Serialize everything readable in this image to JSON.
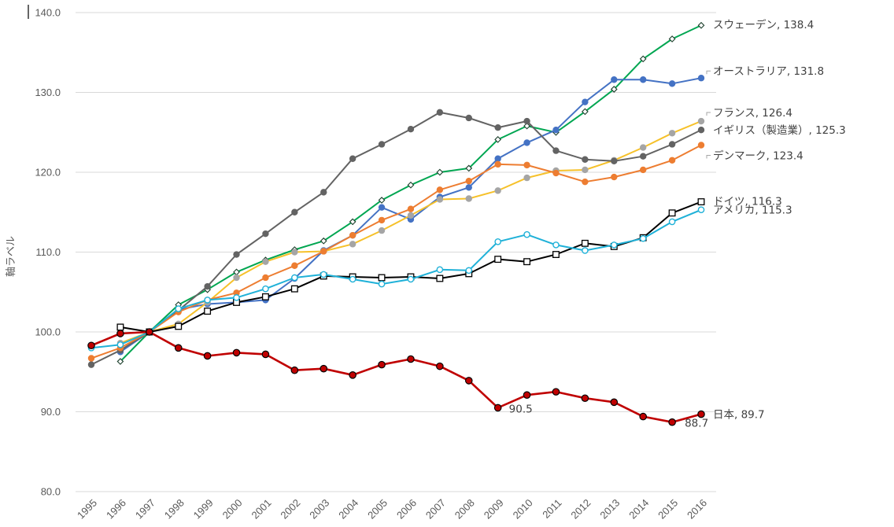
{
  "chart_data": {
    "type": "line",
    "ylabel": "軸ラベル",
    "ylim": [
      80,
      140
    ],
    "yticks": [
      "80.0",
      "90.0",
      "100.0",
      "110.0",
      "120.0",
      "130.0",
      "140.0"
    ],
    "grid": true,
    "x": [
      "1995",
      "1996",
      "1997",
      "1998",
      "1999",
      "2000",
      "2001",
      "2002",
      "2003",
      "2004",
      "2005",
      "2006",
      "2007",
      "2008",
      "2009",
      "2010",
      "2011",
      "2012",
      "2013",
      "2014",
      "2015",
      "2016"
    ],
    "series": [
      {
        "name": "スウェーデン",
        "end_label": "スウェーデン, 138.4",
        "color": "#00a651",
        "marker": "diamond-open",
        "marker_stroke": "#1a3d2a",
        "values": [
          null,
          96.3,
          100.0,
          103.4,
          105.3,
          107.5,
          109.0,
          110.3,
          111.4,
          113.8,
          116.5,
          118.4,
          120.0,
          120.5,
          124.1,
          125.8,
          125.0,
          127.6,
          130.4,
          134.2,
          136.7,
          138.4
        ]
      },
      {
        "name": "オーストラリア",
        "end_label": "オーストラリア, 131.8",
        "color": "#4472c4",
        "marker": "circle",
        "marker_stroke": "#4472c4",
        "values": [
          null,
          97.5,
          100.0,
          102.8,
          103.5,
          103.7,
          104.0,
          106.7,
          110.2,
          112.1,
          115.6,
          114.1,
          116.9,
          118.1,
          121.7,
          123.7,
          125.3,
          128.8,
          131.6,
          131.6,
          131.1,
          131.8
        ]
      },
      {
        "name": "フランス",
        "end_label": "フランス, 126.4",
        "color": "#f6c12a",
        "marker": "circle",
        "marker_stroke": "#a5a5a5",
        "values": [
          null,
          98.6,
          100.0,
          101.0,
          103.7,
          106.8,
          108.8,
          110.0,
          110.1,
          111.0,
          112.7,
          114.6,
          116.6,
          116.7,
          117.7,
          119.3,
          120.2,
          120.3,
          121.5,
          123.1,
          124.9,
          126.4
        ]
      },
      {
        "name": "イギリス（製造業）",
        "end_label": "イギリス（製造業）, 125.3",
        "color": "#636363",
        "marker": "circle",
        "marker_stroke": "#636363",
        "values": [
          95.9,
          97.7,
          100.0,
          102.7,
          105.7,
          109.7,
          112.3,
          115.0,
          117.5,
          121.7,
          123.5,
          125.4,
          127.5,
          126.8,
          125.6,
          126.4,
          122.7,
          121.6,
          121.4,
          122.0,
          123.5,
          125.3
        ]
      },
      {
        "name": "デンマーク",
        "end_label": "デンマーク, 123.4",
        "color": "#ed7d31",
        "marker": "circle",
        "marker_stroke": "#ed7d31",
        "values": [
          96.7,
          98.0,
          100.0,
          102.5,
          104.0,
          104.9,
          106.8,
          108.3,
          110.1,
          112.1,
          114.0,
          115.4,
          117.8,
          118.9,
          121.0,
          120.9,
          119.9,
          118.8,
          119.4,
          120.3,
          121.5,
          123.4
        ]
      },
      {
        "name": "ドイツ",
        "end_label": "ドイツ, 116.3",
        "color": "#000000",
        "marker": "square-open",
        "marker_stroke": "#000000",
        "values": [
          null,
          100.6,
          100.0,
          100.7,
          102.6,
          103.7,
          104.4,
          105.4,
          107.0,
          106.9,
          106.8,
          106.9,
          106.7,
          107.3,
          109.1,
          108.8,
          109.7,
          111.1,
          110.7,
          111.8,
          114.9,
          116.3
        ]
      },
      {
        "name": "アメリカ",
        "end_label": "アメリカ, 115.3",
        "color": "#1fb1d8",
        "marker": "circle-open",
        "marker_stroke": "#1fb1d8",
        "values": [
          98.0,
          98.4,
          100.0,
          102.9,
          104.0,
          104.3,
          105.4,
          106.8,
          107.2,
          106.6,
          106.0,
          106.6,
          107.8,
          107.7,
          111.3,
          112.2,
          110.9,
          110.2,
          110.9,
          111.7,
          113.8,
          115.3
        ]
      },
      {
        "name": "日本",
        "end_label": "日本, 89.7",
        "color": "#c00000",
        "marker": "circle",
        "marker_stroke": "#000000",
        "values": [
          98.3,
          99.8,
          100.0,
          98.0,
          97.0,
          97.4,
          97.2,
          95.2,
          95.4,
          94.6,
          95.9,
          96.6,
          95.7,
          93.9,
          90.5,
          92.1,
          92.5,
          91.7,
          91.2,
          89.4,
          88.7,
          89.7
        ]
      }
    ],
    "annotations": [
      {
        "series": "日本",
        "x": "2009",
        "text": "90.5"
      },
      {
        "series": "日本",
        "x": "2015",
        "text": "88.7"
      }
    ]
  }
}
